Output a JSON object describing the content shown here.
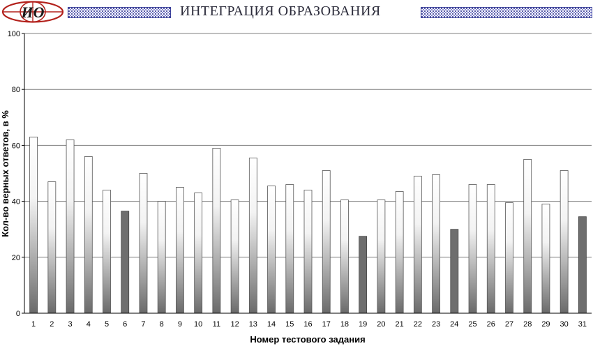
{
  "header": {
    "logo_text": "ИО",
    "title": "ИНТЕГРАЦИЯ ОБРАЗОВАНИЯ"
  },
  "colors": {
    "bar_light_top": "#ffffff",
    "bar_light_bottom": "#6a6a6a",
    "bar_dark": "#6e6e6e",
    "grid": "#7f7f7f",
    "logo_red": "#b3211c",
    "pattern_blue": "#2a2f8f"
  },
  "chart_data": {
    "type": "bar",
    "title": "",
    "xlabel": "Номер тестового задания",
    "ylabel": "Кол-во верных ответов, в %",
    "ylim": [
      0,
      100
    ],
    "yticks": [
      0,
      20,
      40,
      60,
      80,
      100
    ],
    "grid": true,
    "categories": [
      "1",
      "2",
      "3",
      "4",
      "5",
      "6",
      "7",
      "8",
      "9",
      "10",
      "11",
      "12",
      "13",
      "14",
      "15",
      "16",
      "17",
      "18",
      "19",
      "20",
      "21",
      "22",
      "23",
      "24",
      "25",
      "26",
      "27",
      "28",
      "29",
      "30",
      "31"
    ],
    "values": [
      63,
      47,
      62,
      56,
      44,
      36.5,
      50,
      40,
      45,
      43,
      59,
      40.5,
      55.5,
      45.5,
      46,
      44,
      51,
      40.5,
      27.5,
      40.5,
      43.5,
      49,
      49.5,
      30,
      46,
      46,
      39.5,
      55,
      39,
      51,
      34.5
    ],
    "highlighted": [
      false,
      false,
      false,
      false,
      false,
      true,
      false,
      false,
      false,
      false,
      false,
      false,
      false,
      false,
      false,
      false,
      false,
      false,
      true,
      false,
      false,
      false,
      false,
      true,
      false,
      false,
      false,
      false,
      false,
      false,
      true
    ]
  }
}
